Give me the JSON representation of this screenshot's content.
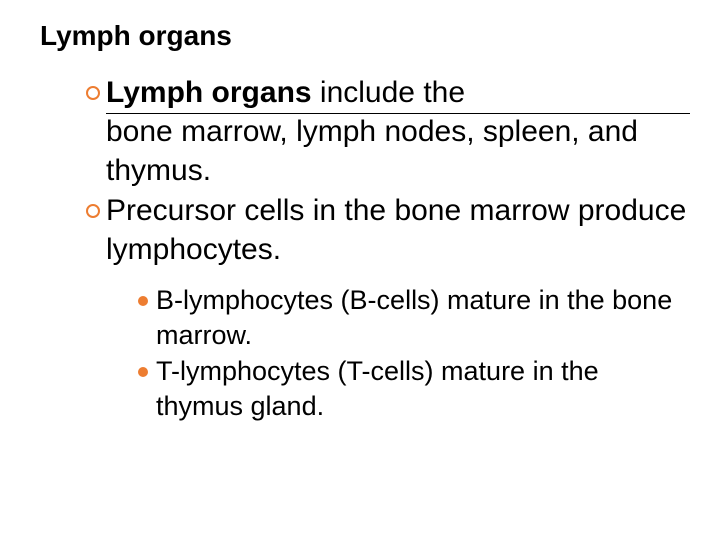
{
  "accent_color": "#ed7d31",
  "text_color": "#000000",
  "background_color": "#ffffff",
  "font_family": "Verdana",
  "title": {
    "text": "Lymph organs",
    "fontsize": 28,
    "weight": "bold"
  },
  "level1": {
    "fontsize": 30,
    "bullet_style": "open-circle",
    "items": [
      {
        "bold_lead": "Lymph organs",
        "rest_line1": " include the",
        "rest_lines": "bone marrow, lymph nodes, spleen, and thymus.",
        "has_underline_first_line": true
      },
      {
        "full_text": "Precursor cells in the bone marrow produce lymphocytes.",
        "has_underline_first_line": false
      }
    ]
  },
  "level2": {
    "fontsize": 27,
    "bullet_style": "solid-circle",
    "items": [
      {
        "text": "B-lymphocytes (B-cells) mature in the bone marrow."
      },
      {
        "text": "T-lymphocytes (T-cells) mature in the thymus gland."
      }
    ]
  }
}
